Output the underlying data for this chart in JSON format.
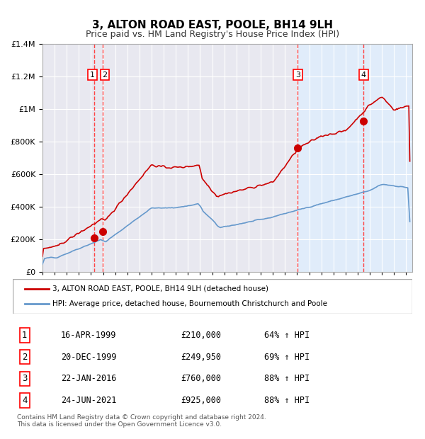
{
  "title": "3, ALTON ROAD EAST, POOLE, BH14 9LH",
  "subtitle": "Price paid vs. HM Land Registry's House Price Index (HPI)",
  "ylim": [
    0,
    1400000
  ],
  "yticks": [
    0,
    200000,
    400000,
    600000,
    800000,
    1000000,
    1200000,
    1400000
  ],
  "xlim_start": 1995.0,
  "xlim_end": 2025.5,
  "sale_dates": [
    1999.29,
    1999.97,
    2016.06,
    2021.48
  ],
  "sale_prices": [
    210000,
    249950,
    760000,
    925000
  ],
  "sale_labels": [
    "1",
    "2",
    "3",
    "4"
  ],
  "legend_red": "3, ALTON ROAD EAST, POOLE, BH14 9LH (detached house)",
  "legend_blue": "HPI: Average price, detached house, Bournemouth Christchurch and Poole",
  "table_rows": [
    [
      "1",
      "16-APR-1999",
      "£210,000",
      "64% ↑ HPI"
    ],
    [
      "2",
      "20-DEC-1999",
      "£249,950",
      "69% ↑ HPI"
    ],
    [
      "3",
      "22-JAN-2016",
      "£760,000",
      "88% ↑ HPI"
    ],
    [
      "4",
      "24-JUN-2021",
      "£925,000",
      "88% ↑ HPI"
    ]
  ],
  "footer": "Contains HM Land Registry data © Crown copyright and database right 2024.\nThis data is licensed under the Open Government Licence v3.0.",
  "red_color": "#cc0000",
  "blue_color": "#6699cc",
  "bg_color": "#ffffff",
  "plot_bg_color": "#e8e8f0",
  "highlight_bg": "#ddeeff",
  "grid_color": "#ffffff",
  "dashed_color": "#ff4444"
}
